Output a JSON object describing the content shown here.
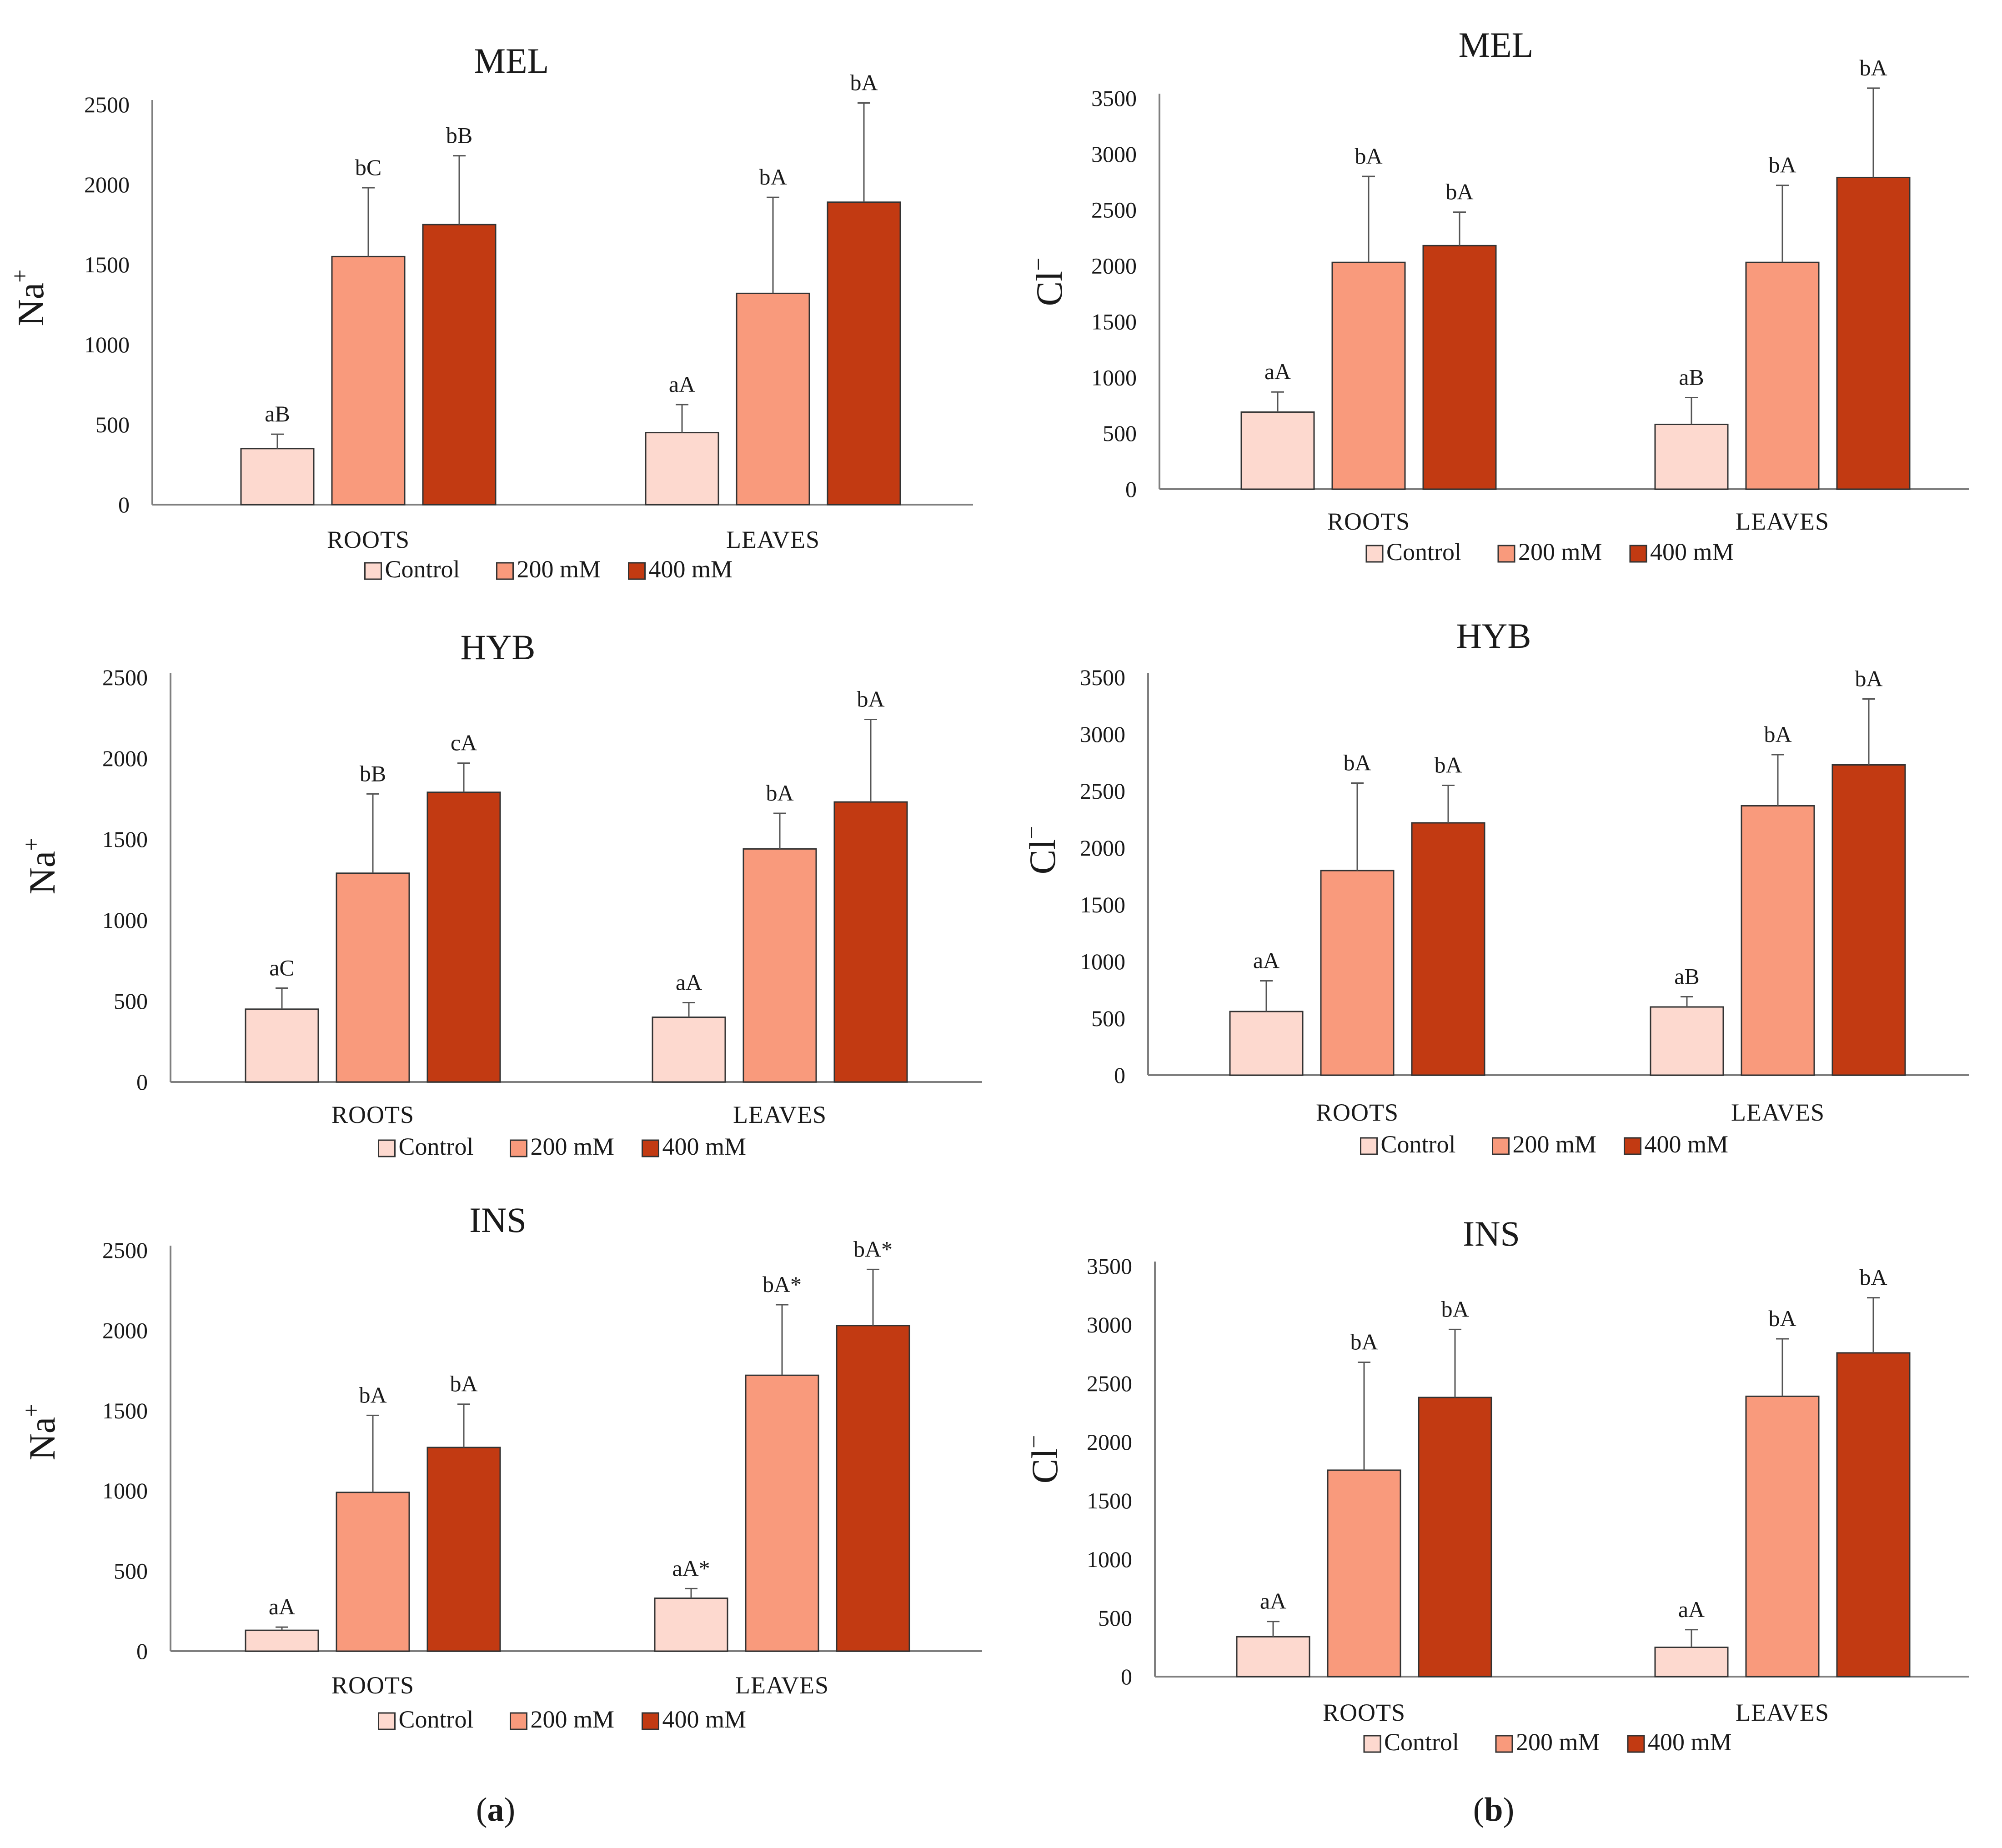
{
  "panel_labels": {
    "a": {
      "open": "(",
      "letter": "a",
      "close": ")"
    },
    "b": {
      "open": "(",
      "letter": "b",
      "close": ")"
    }
  },
  "colors": {
    "Control": "#fdd9cf",
    "200 mM": "#f99a7c",
    "400 mM": "#c23a12",
    "axis": "#7f7f7f",
    "error": "#555555",
    "outline": "#333333"
  },
  "chart_data": [
    {
      "id": "mel-na",
      "type": "bar",
      "title": "MEL",
      "ylabel": {
        "base": "Na",
        "sup": "+"
      },
      "categories": [
        "ROOTS",
        "LEAVES"
      ],
      "ylim": [
        0,
        2500
      ],
      "yticks": [
        0,
        500,
        1000,
        1500,
        2000,
        2500
      ],
      "series": [
        {
          "name": "Control",
          "values": [
            350,
            450
          ],
          "errors": [
            90,
            175
          ],
          "labels": [
            "aB",
            "aA"
          ]
        },
        {
          "name": "200 mM",
          "values": [
            1550,
            1320
          ],
          "errors": [
            430,
            600
          ],
          "labels": [
            "bC",
            "bA"
          ]
        },
        {
          "name": "400 mM",
          "values": [
            1750,
            1890
          ],
          "errors": [
            430,
            620
          ],
          "labels": [
            "bB",
            "bA"
          ]
        }
      ],
      "legend": [
        "Control",
        "200 mM",
        "400 mM"
      ]
    },
    {
      "id": "mel-cl",
      "type": "bar",
      "title": "MEL",
      "ylabel": {
        "base": "Cl",
        "sup": "−"
      },
      "categories": [
        "ROOTS",
        "LEAVES"
      ],
      "ylim": [
        0,
        3500
      ],
      "yticks": [
        0,
        500,
        1000,
        1500,
        2000,
        2500,
        3000,
        3500
      ],
      "series": [
        {
          "name": "Control",
          "values": [
            690,
            580
          ],
          "errors": [
            180,
            240
          ],
          "labels": [
            "aA",
            "aB"
          ]
        },
        {
          "name": "200 mM",
          "values": [
            2030,
            2030
          ],
          "errors": [
            770,
            690
          ],
          "labels": [
            "bA",
            "bA"
          ]
        },
        {
          "name": "400 mM",
          "values": [
            2180,
            2790
          ],
          "errors": [
            300,
            800
          ],
          "labels": [
            "bA",
            "bA"
          ]
        }
      ],
      "legend": [
        "Control",
        "200 mM",
        "400 mM"
      ]
    },
    {
      "id": "hyb-na",
      "type": "bar",
      "title": "HYB",
      "ylabel": {
        "base": "Na",
        "sup": "+"
      },
      "categories": [
        "ROOTS",
        "LEAVES"
      ],
      "ylim": [
        0,
        2500
      ],
      "yticks": [
        0,
        500,
        1000,
        1500,
        2000,
        2500
      ],
      "series": [
        {
          "name": "Control",
          "values": [
            450,
            400
          ],
          "errors": [
            130,
            90
          ],
          "labels": [
            "aC",
            "aA"
          ]
        },
        {
          "name": "200 mM",
          "values": [
            1290,
            1440
          ],
          "errors": [
            490,
            220
          ],
          "labels": [
            "bB",
            "bA"
          ]
        },
        {
          "name": "400 mM",
          "values": [
            1790,
            1730
          ],
          "errors": [
            180,
            510
          ],
          "labels": [
            "cA",
            "bA"
          ]
        }
      ],
      "legend": [
        "Control",
        "200 mM",
        "400 mM"
      ]
    },
    {
      "id": "hyb-cl",
      "type": "bar",
      "title": "HYB",
      "ylabel": {
        "base": "Cl",
        "sup": "−"
      },
      "categories": [
        "ROOTS",
        "LEAVES"
      ],
      "ylim": [
        0,
        3500
      ],
      "yticks": [
        0,
        500,
        1000,
        1500,
        2000,
        2500,
        3000,
        3500
      ],
      "series": [
        {
          "name": "Control",
          "values": [
            560,
            600
          ],
          "errors": [
            270,
            90
          ],
          "labels": [
            "aA",
            "aB"
          ]
        },
        {
          "name": "200 mM",
          "values": [
            1800,
            2370
          ],
          "errors": [
            770,
            450
          ],
          "labels": [
            "bA",
            "bA"
          ]
        },
        {
          "name": "400 mM",
          "values": [
            2220,
            2730
          ],
          "errors": [
            330,
            580
          ],
          "labels": [
            "bA",
            "bA"
          ]
        }
      ],
      "legend": [
        "Control",
        "200 mM",
        "400 mM"
      ]
    },
    {
      "id": "ins-na",
      "type": "bar",
      "title": "INS",
      "ylabel": {
        "base": "Na",
        "sup": "+"
      },
      "categories": [
        "ROOTS",
        "LEAVES"
      ],
      "ylim": [
        0,
        2500
      ],
      "yticks": [
        0,
        500,
        1000,
        1500,
        2000,
        2500
      ],
      "series": [
        {
          "name": "Control",
          "values": [
            130,
            330
          ],
          "errors": [
            20,
            60
          ],
          "labels": [
            "aA",
            "aA*"
          ]
        },
        {
          "name": "200 mM",
          "values": [
            990,
            1720
          ],
          "errors": [
            480,
            440
          ],
          "labels": [
            "bA",
            "bA*"
          ]
        },
        {
          "name": "400 mM",
          "values": [
            1270,
            2030
          ],
          "errors": [
            270,
            350
          ],
          "labels": [
            "bA",
            "bA*"
          ]
        }
      ],
      "legend": [
        "Control",
        "200 mM",
        "400 mM"
      ]
    },
    {
      "id": "ins-cl",
      "type": "bar",
      "title": "INS",
      "ylabel": {
        "base": "Cl",
        "sup": "−"
      },
      "categories": [
        "ROOTS",
        "LEAVES"
      ],
      "ylim": [
        0,
        3500
      ],
      "yticks": [
        0,
        500,
        1000,
        1500,
        2000,
        2500,
        3000,
        3500
      ],
      "series": [
        {
          "name": "Control",
          "values": [
            340,
            250
          ],
          "errors": [
            130,
            150
          ],
          "labels": [
            "aA",
            "aA"
          ]
        },
        {
          "name": "200 mM",
          "values": [
            1760,
            2390
          ],
          "errors": [
            920,
            490
          ],
          "labels": [
            "bA",
            "bA"
          ]
        },
        {
          "name": "400 mM",
          "values": [
            2380,
            2760
          ],
          "errors": [
            580,
            470
          ],
          "labels": [
            "bA",
            "bA"
          ]
        }
      ],
      "legend": [
        "Control",
        "200 mM",
        "400 mM"
      ]
    }
  ]
}
